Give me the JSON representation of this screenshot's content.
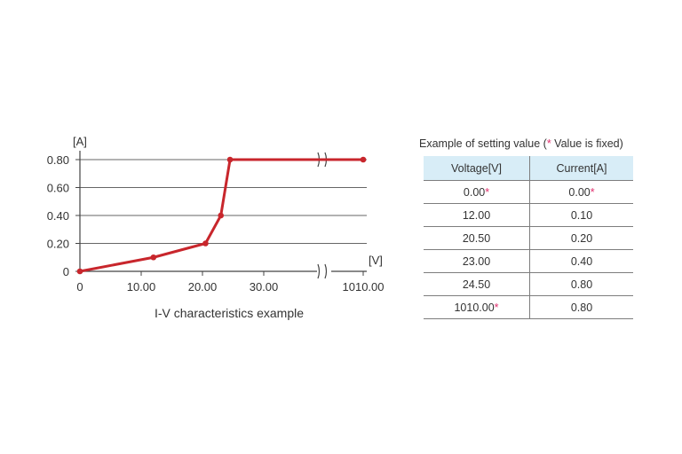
{
  "chart_data": {
    "type": "line",
    "title": "I-V characteristics example",
    "xlabel": "[V]",
    "ylabel": "[A]",
    "x_ticks": [
      "0",
      "10.00",
      "20.00",
      "30.00",
      "1010.00"
    ],
    "y_ticks": [
      "0",
      "0.20",
      "0.40",
      "0.60",
      "0.80"
    ],
    "ylim": [
      0,
      0.8
    ],
    "axis_break": {
      "from": 30,
      "to": 1010
    },
    "grid": true,
    "series": [
      {
        "x": [
          0,
          12.0,
          20.5,
          23.0,
          24.5,
          1010.0
        ],
        "y": [
          0,
          0.1,
          0.2,
          0.4,
          0.8,
          0.8
        ],
        "color": "#c8262c"
      }
    ]
  },
  "table": {
    "title_prefix": "Example of setting value (",
    "title_star": "*",
    "title_suffix": " Value is fixed)",
    "headers": [
      "Voltage[V]",
      "Current[A]"
    ],
    "rows": [
      [
        "0.00",
        "0.00"
      ],
      [
        "12.00",
        "0.10"
      ],
      [
        "20.50",
        "0.20"
      ],
      [
        "23.00",
        "0.40"
      ],
      [
        "24.50",
        "0.80"
      ],
      [
        "1010.00",
        "0.80"
      ]
    ],
    "fixed_marker": "*"
  },
  "colors": {
    "line": "#c8262c",
    "marker": "#e0306e",
    "header_bg": "#d8edf7"
  }
}
